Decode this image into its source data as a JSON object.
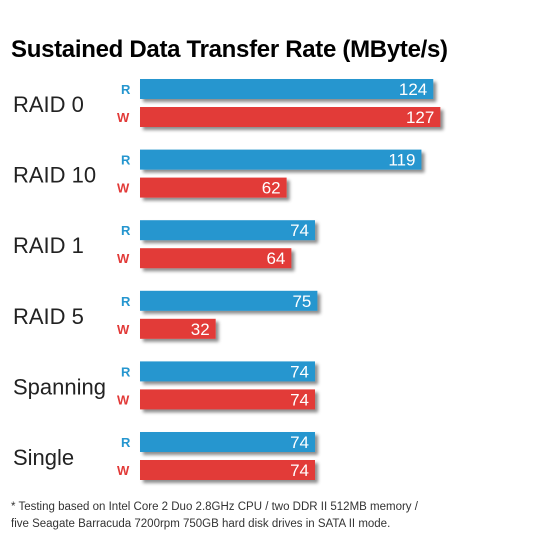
{
  "chart_data": {
    "type": "bar",
    "orientation": "horizontal",
    "title": "Sustained Data Transfer Rate (MByte/s)",
    "categories": [
      "RAID 0",
      "RAID 10",
      "RAID 1",
      "RAID 5",
      "Spanning",
      "Single"
    ],
    "series": [
      {
        "name": "R",
        "values": [
          124,
          119,
          74,
          75,
          74,
          74
        ]
      },
      {
        "name": "W",
        "values": [
          127,
          62,
          64,
          32,
          74,
          74
        ]
      }
    ],
    "colors": {
      "R": "#2596cf",
      "W": "#e23a38"
    },
    "xlim": [
      0,
      130
    ],
    "grid": false
  },
  "footnote": {
    "line1": "* Testing based on Intel Core 2 Duo 2.8GHz CPU / two DDR II 512MB memory /",
    "line2": "five Seagate Barracuda 7200rpm 750GB hard disk drives in SATA II mode."
  }
}
